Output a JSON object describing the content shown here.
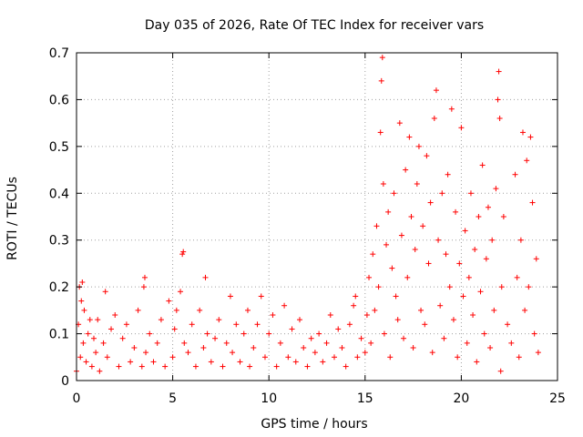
{
  "chart_data": {
    "type": "scatter",
    "title": "Day 035 of 2026, Rate Of TEC Index for receiver vars",
    "xlabel": "GPS time / hours",
    "ylabel": "ROTI / TECUs",
    "xlim": [
      0,
      25
    ],
    "ylim": [
      0,
      0.7
    ],
    "xticks": [
      "0",
      "5",
      "10",
      "15",
      "20",
      "25"
    ],
    "yticks": [
      "0",
      "0.1",
      "0.2",
      "0.3",
      "0.4",
      "0.5",
      "0.6",
      "0.7"
    ],
    "grid": true,
    "marker": "plus",
    "color": "#ff0000",
    "series": [
      {
        "name": "ROTI",
        "points": [
          [
            0.0,
            0.02
          ],
          [
            0.1,
            0.12
          ],
          [
            0.15,
            0.2
          ],
          [
            0.2,
            0.05
          ],
          [
            0.25,
            0.17
          ],
          [
            0.3,
            0.21
          ],
          [
            0.35,
            0.08
          ],
          [
            0.4,
            0.15
          ],
          [
            0.5,
            0.04
          ],
          [
            0.6,
            0.1
          ],
          [
            0.7,
            0.13
          ],
          [
            0.8,
            0.03
          ],
          [
            0.9,
            0.09
          ],
          [
            1.0,
            0.06
          ],
          [
            1.1,
            0.13
          ],
          [
            1.2,
            0.02
          ],
          [
            1.4,
            0.08
          ],
          [
            1.5,
            0.19
          ],
          [
            1.6,
            0.05
          ],
          [
            1.8,
            0.11
          ],
          [
            2.0,
            0.14
          ],
          [
            2.2,
            0.03
          ],
          [
            2.4,
            0.09
          ],
          [
            2.6,
            0.12
          ],
          [
            2.8,
            0.04
          ],
          [
            3.0,
            0.07
          ],
          [
            3.2,
            0.15
          ],
          [
            3.4,
            0.03
          ],
          [
            3.5,
            0.2
          ],
          [
            3.55,
            0.22
          ],
          [
            3.6,
            0.06
          ],
          [
            3.8,
            0.1
          ],
          [
            4.0,
            0.04
          ],
          [
            4.2,
            0.08
          ],
          [
            4.4,
            0.13
          ],
          [
            4.6,
            0.03
          ],
          [
            4.8,
            0.17
          ],
          [
            5.0,
            0.05
          ],
          [
            5.1,
            0.11
          ],
          [
            5.2,
            0.15
          ],
          [
            5.4,
            0.19
          ],
          [
            5.5,
            0.27
          ],
          [
            5.55,
            0.275
          ],
          [
            5.6,
            0.08
          ],
          [
            5.8,
            0.06
          ],
          [
            6.0,
            0.12
          ],
          [
            6.2,
            0.03
          ],
          [
            6.4,
            0.15
          ],
          [
            6.6,
            0.07
          ],
          [
            6.7,
            0.22
          ],
          [
            6.8,
            0.1
          ],
          [
            7.0,
            0.04
          ],
          [
            7.2,
            0.09
          ],
          [
            7.4,
            0.13
          ],
          [
            7.6,
            0.03
          ],
          [
            7.8,
            0.08
          ],
          [
            8.0,
            0.18
          ],
          [
            8.1,
            0.06
          ],
          [
            8.3,
            0.12
          ],
          [
            8.5,
            0.04
          ],
          [
            8.7,
            0.1
          ],
          [
            8.9,
            0.15
          ],
          [
            9.0,
            0.03
          ],
          [
            9.2,
            0.07
          ],
          [
            9.4,
            0.12
          ],
          [
            9.6,
            0.18
          ],
          [
            9.8,
            0.05
          ],
          [
            10.0,
            0.1
          ],
          [
            10.2,
            0.14
          ],
          [
            10.4,
            0.03
          ],
          [
            10.6,
            0.08
          ],
          [
            10.8,
            0.16
          ],
          [
            11.0,
            0.05
          ],
          [
            11.2,
            0.11
          ],
          [
            11.4,
            0.04
          ],
          [
            11.6,
            0.13
          ],
          [
            11.8,
            0.07
          ],
          [
            12.0,
            0.03
          ],
          [
            12.2,
            0.09
          ],
          [
            12.4,
            0.06
          ],
          [
            12.6,
            0.1
          ],
          [
            12.8,
            0.04
          ],
          [
            13.0,
            0.08
          ],
          [
            13.2,
            0.14
          ],
          [
            13.4,
            0.05
          ],
          [
            13.6,
            0.11
          ],
          [
            13.8,
            0.07
          ],
          [
            14.0,
            0.03
          ],
          [
            14.2,
            0.12
          ],
          [
            14.4,
            0.16
          ],
          [
            14.5,
            0.18
          ],
          [
            14.6,
            0.05
          ],
          [
            14.8,
            0.09
          ],
          [
            15.0,
            0.06
          ],
          [
            15.1,
            0.14
          ],
          [
            15.2,
            0.22
          ],
          [
            15.3,
            0.08
          ],
          [
            15.4,
            0.27
          ],
          [
            15.5,
            0.15
          ],
          [
            15.6,
            0.33
          ],
          [
            15.7,
            0.2
          ],
          [
            15.8,
            0.53
          ],
          [
            15.85,
            0.64
          ],
          [
            15.9,
            0.69
          ],
          [
            15.95,
            0.42
          ],
          [
            16.0,
            0.1
          ],
          [
            16.1,
            0.29
          ],
          [
            16.2,
            0.36
          ],
          [
            16.3,
            0.05
          ],
          [
            16.4,
            0.24
          ],
          [
            16.5,
            0.4
          ],
          [
            16.6,
            0.18
          ],
          [
            16.7,
            0.13
          ],
          [
            16.8,
            0.55
          ],
          [
            16.9,
            0.31
          ],
          [
            17.0,
            0.09
          ],
          [
            17.1,
            0.45
          ],
          [
            17.2,
            0.22
          ],
          [
            17.3,
            0.52
          ],
          [
            17.4,
            0.35
          ],
          [
            17.5,
            0.07
          ],
          [
            17.6,
            0.28
          ],
          [
            17.7,
            0.42
          ],
          [
            17.8,
            0.5
          ],
          [
            17.9,
            0.15
          ],
          [
            18.0,
            0.33
          ],
          [
            18.1,
            0.12
          ],
          [
            18.2,
            0.48
          ],
          [
            18.3,
            0.25
          ],
          [
            18.4,
            0.38
          ],
          [
            18.5,
            0.06
          ],
          [
            18.6,
            0.56
          ],
          [
            18.7,
            0.62
          ],
          [
            18.8,
            0.3
          ],
          [
            18.9,
            0.16
          ],
          [
            19.0,
            0.4
          ],
          [
            19.1,
            0.09
          ],
          [
            19.2,
            0.27
          ],
          [
            19.3,
            0.44
          ],
          [
            19.4,
            0.2
          ],
          [
            19.5,
            0.58
          ],
          [
            19.6,
            0.13
          ],
          [
            19.7,
            0.36
          ],
          [
            19.8,
            0.05
          ],
          [
            19.9,
            0.25
          ],
          [
            20.0,
            0.54
          ],
          [
            20.1,
            0.18
          ],
          [
            20.2,
            0.32
          ],
          [
            20.3,
            0.08
          ],
          [
            20.4,
            0.22
          ],
          [
            20.5,
            0.4
          ],
          [
            20.6,
            0.14
          ],
          [
            20.7,
            0.28
          ],
          [
            20.8,
            0.04
          ],
          [
            20.9,
            0.35
          ],
          [
            21.0,
            0.19
          ],
          [
            21.1,
            0.46
          ],
          [
            21.2,
            0.1
          ],
          [
            21.3,
            0.26
          ],
          [
            21.4,
            0.37
          ],
          [
            21.5,
            0.07
          ],
          [
            21.6,
            0.3
          ],
          [
            21.7,
            0.15
          ],
          [
            21.8,
            0.41
          ],
          [
            21.9,
            0.6
          ],
          [
            21.95,
            0.66
          ],
          [
            22.0,
            0.56
          ],
          [
            22.05,
            0.02
          ],
          [
            22.1,
            0.2
          ],
          [
            22.2,
            0.35
          ],
          [
            22.4,
            0.12
          ],
          [
            22.6,
            0.08
          ],
          [
            22.8,
            0.44
          ],
          [
            22.9,
            0.22
          ],
          [
            23.0,
            0.05
          ],
          [
            23.1,
            0.3
          ],
          [
            23.2,
            0.53
          ],
          [
            23.3,
            0.15
          ],
          [
            23.4,
            0.47
          ],
          [
            23.5,
            0.2
          ],
          [
            23.6,
            0.52
          ],
          [
            23.7,
            0.38
          ],
          [
            23.8,
            0.1
          ],
          [
            23.9,
            0.26
          ],
          [
            24.0,
            0.06
          ]
        ]
      }
    ]
  }
}
